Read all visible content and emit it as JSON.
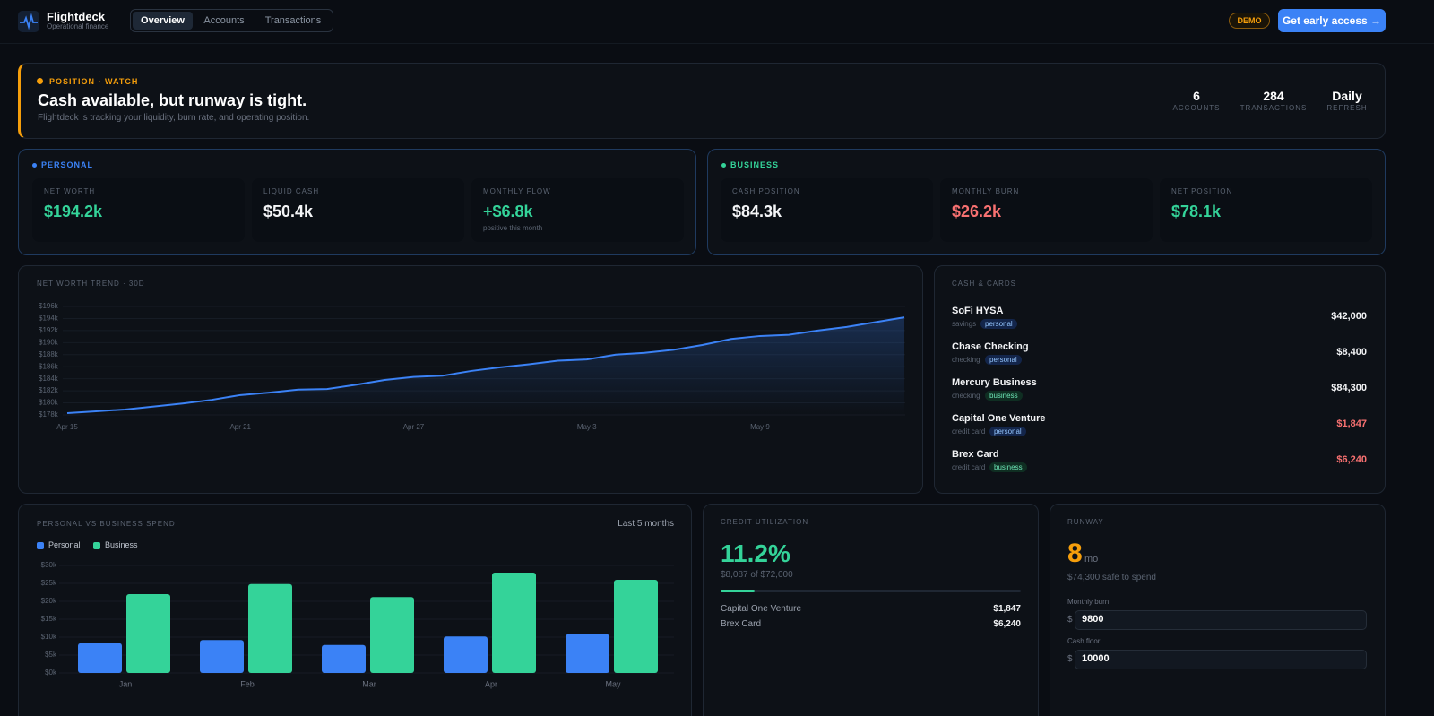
{
  "header": {
    "brand": "Flightdeck",
    "tagline": "Operational finance",
    "tabs": [
      "Overview",
      "Accounts",
      "Transactions"
    ],
    "badge": "DEMO",
    "cta": "Get early access →"
  },
  "banner": {
    "status": "POSITION · WATCH",
    "title": "Cash available, but runway is tight.",
    "subtitle": "Flightdeck is tracking your liquidity, burn rate, and operating position.",
    "stats": [
      {
        "value": "6",
        "label": "ACCOUNTS"
      },
      {
        "value": "284",
        "label": "TRANSACTIONS"
      },
      {
        "value": "Daily",
        "label": "REFRESH"
      }
    ]
  },
  "personal": {
    "label": "PERSONAL",
    "color": "#3b82f6",
    "cards": [
      {
        "label": "NET WORTH",
        "value": "$194.2k",
        "color": "#34d399"
      },
      {
        "label": "LIQUID CASH",
        "value": "$50.4k",
        "color": "#f3f4f6"
      },
      {
        "label": "MONTHLY FLOW",
        "value": "+$6.8k",
        "color": "#34d399",
        "note": "positive this month"
      }
    ]
  },
  "business": {
    "label": "BUSINESS",
    "color": "#34d399",
    "cards": [
      {
        "label": "CASH POSITION",
        "value": "$84.3k",
        "color": "#f3f4f6"
      },
      {
        "label": "MONTHLY BURN",
        "value": "$26.2k",
        "color": "#f87171"
      },
      {
        "label": "NET POSITION",
        "value": "$78.1k",
        "color": "#34d399"
      }
    ]
  },
  "net_worth_chart": {
    "type": "line",
    "title": "NET WORTH TREND · 30D",
    "color": "#3b82f6",
    "grid": true,
    "categories": [
      "Apr 15",
      null,
      null,
      null,
      null,
      null,
      "Apr 21",
      null,
      null,
      null,
      null,
      null,
      "Apr 27",
      null,
      null,
      null,
      null,
      null,
      "May 3",
      null,
      null,
      null,
      null,
      null,
      "May 9",
      null,
      null,
      null,
      null,
      null
    ],
    "values": [
      178.3,
      178.6,
      178.9,
      179.4,
      179.9,
      180.5,
      181.3,
      181.7,
      182.2,
      182.3,
      183.0,
      183.8,
      184.3,
      184.5,
      185.3,
      185.9,
      186.4,
      187.0,
      187.2,
      188.0,
      188.3,
      188.8,
      189.6,
      190.6,
      191.1,
      191.3,
      192.0,
      192.6,
      193.4,
      194.2
    ],
    "ylim": [
      178,
      196
    ],
    "yticks": [
      {
        "value": 178,
        "label": "$178k"
      },
      {
        "value": 180,
        "label": "$180k"
      },
      {
        "value": 182,
        "label": "$182k"
      },
      {
        "value": 184,
        "label": "$184k"
      },
      {
        "value": 186,
        "label": "$186k"
      },
      {
        "value": 188,
        "label": "$188k"
      },
      {
        "value": 190,
        "label": "$190k"
      },
      {
        "value": 192,
        "label": "$192k"
      },
      {
        "value": 194,
        "label": "$194k"
      },
      {
        "value": 196,
        "label": "$196k"
      }
    ]
  },
  "cash_cards": {
    "title": "CASH & CARDS",
    "accounts": [
      {
        "name": "SoFi HYSA",
        "type": "savings",
        "tag": "personal",
        "amount": "$42,000",
        "color": "#f3f4f6"
      },
      {
        "name": "Chase Checking",
        "type": "checking",
        "tag": "personal",
        "amount": "$8,400",
        "color": "#f3f4f6"
      },
      {
        "name": "Mercury Business",
        "type": "checking",
        "tag": "business",
        "amount": "$84,300",
        "color": "#f3f4f6"
      },
      {
        "name": "Capital One Venture",
        "type": "credit card",
        "tag": "personal",
        "amount": "$1,847",
        "color": "#f87171"
      },
      {
        "name": "Brex Card",
        "type": "credit card",
        "tag": "business",
        "amount": "$6,240",
        "color": "#f87171"
      }
    ]
  },
  "spend_chart": {
    "type": "bar",
    "title": "PERSONAL VS BUSINESS SPEND",
    "subtitle": "Last 5 months",
    "grid": true,
    "categories": [
      "Jan",
      "Feb",
      "Mar",
      "Apr",
      "May"
    ],
    "series": [
      {
        "name": "Personal",
        "color": "#3b82f6",
        "values": [
          8.3,
          9.2,
          7.8,
          10.2,
          10.8
        ]
      },
      {
        "name": "Business",
        "color": "#34d399",
        "values": [
          22.0,
          24.8,
          21.2,
          28.0,
          26.0
        ]
      }
    ],
    "ylim": [
      0,
      30
    ],
    "yticks": [
      {
        "value": 0,
        "label": "$0k"
      },
      {
        "value": 5,
        "label": "$5k"
      },
      {
        "value": 10,
        "label": "$10k"
      },
      {
        "value": 15,
        "label": "$15k"
      },
      {
        "value": 20,
        "label": "$20k"
      },
      {
        "value": 25,
        "label": "$25k"
      },
      {
        "value": 30,
        "label": "$30k"
      }
    ]
  },
  "credit": {
    "title": "CREDIT UTILIZATION",
    "utilization": {
      "value": 11.2,
      "label": "11.2%"
    },
    "detail": "$8,087 of $72,000",
    "cards": [
      {
        "name": "Capital One Venture",
        "amount": "$1,847"
      },
      {
        "name": "Brex Card",
        "amount": "$6,240"
      }
    ]
  },
  "runway": {
    "title": "RUNWAY",
    "months": "8",
    "unit": "mo",
    "note": "$74,300 safe to spend",
    "fields": [
      {
        "label": "Monthly burn",
        "currency": "$",
        "value": "9800"
      },
      {
        "label": "Cash floor",
        "currency": "$",
        "value": "10000"
      }
    ]
  }
}
